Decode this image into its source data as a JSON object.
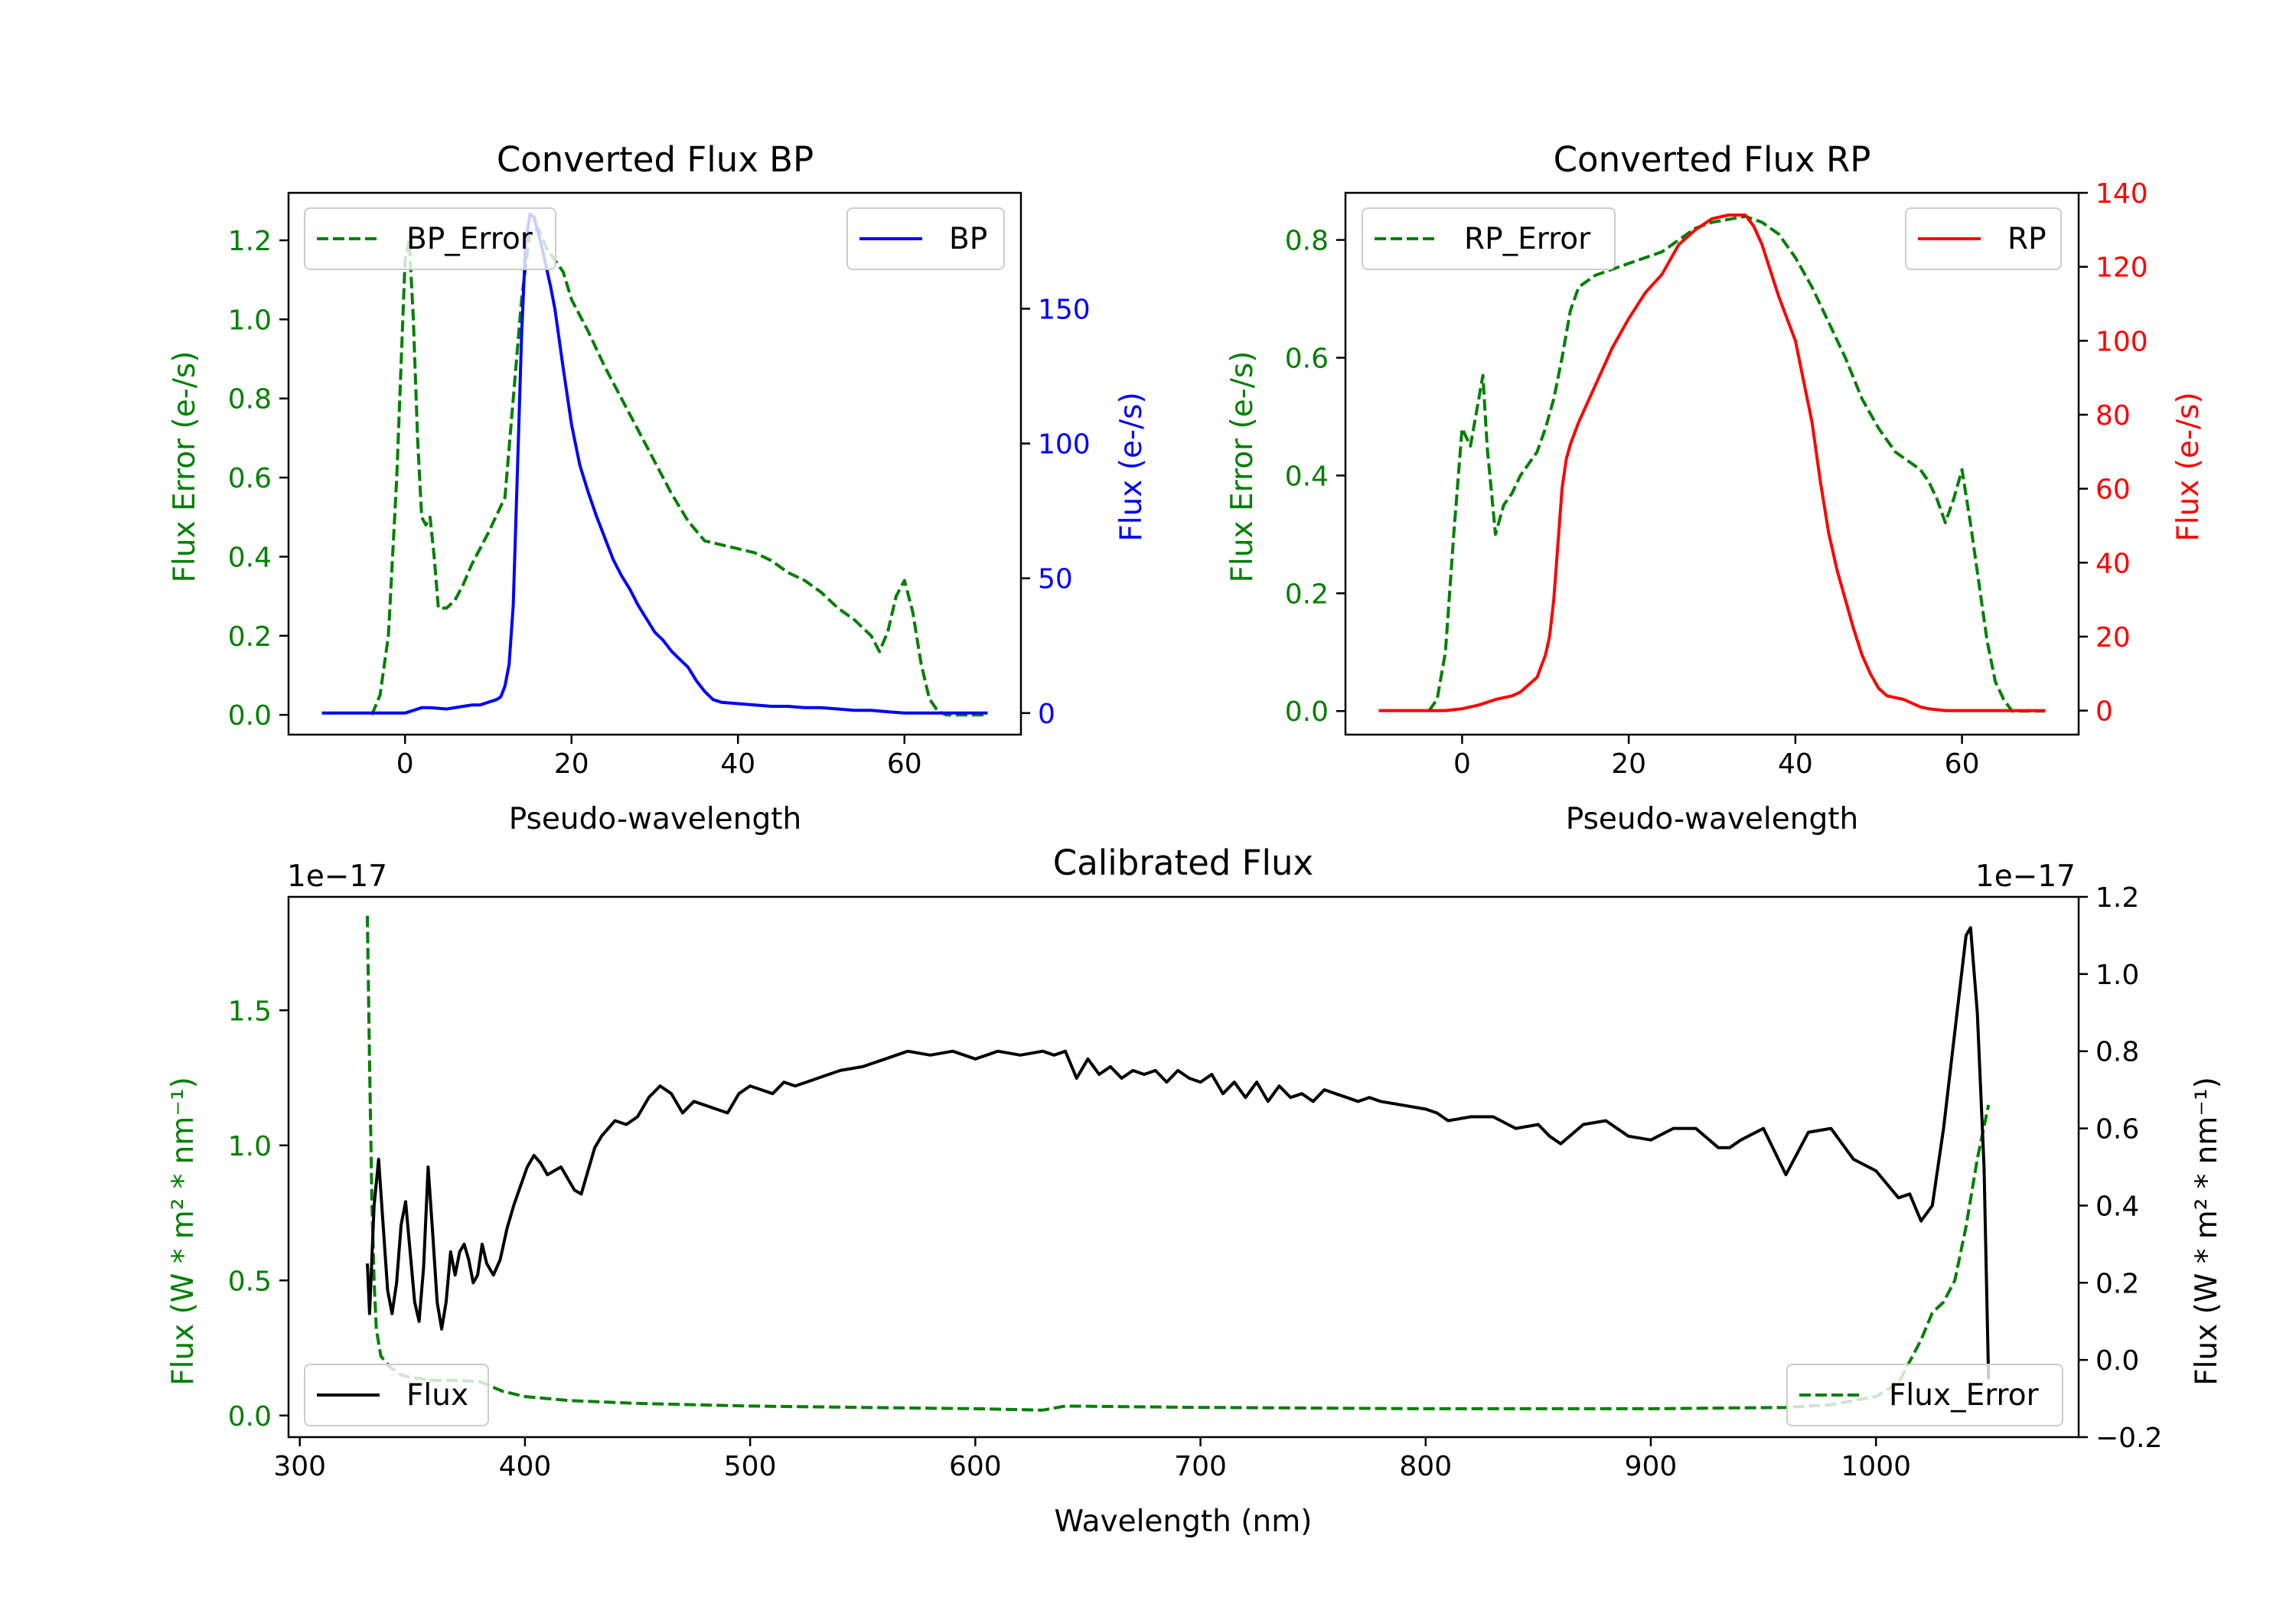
{
  "chart_data": [
    {
      "type": "line",
      "title": "Converted Flux BP",
      "xlabel": "Pseudo-wavelength",
      "ylabel_left": "Flux Error (e-/s)",
      "ylabel_right": "Flux (e-/s)",
      "xlim": [
        -14,
        74
      ],
      "ylim_left": [
        -0.05,
        1.32
      ],
      "ylim_right": [
        -8,
        193
      ],
      "xticks": [
        0,
        20,
        40,
        60
      ],
      "yticks_left": [
        0.0,
        0.2,
        0.4,
        0.6,
        0.8,
        1.0,
        1.2
      ],
      "yticks_right": [
        0,
        50,
        100,
        150
      ],
      "colors": {
        "left": "#008000",
        "right": "#0000ff"
      },
      "legend_left": {
        "label": "BP_Error",
        "position": "upper-left"
      },
      "legend_right": {
        "label": "BP",
        "position": "upper-right"
      },
      "series": [
        {
          "name": "BP_Error",
          "axis": "left",
          "color": "#008000",
          "style": "dashed",
          "x": [
            -4,
            -3,
            -2,
            -1,
            0,
            0.5,
            1,
            1.5,
            2,
            2.5,
            3,
            3.5,
            4,
            5,
            6,
            7,
            8,
            10,
            12,
            14,
            15,
            16,
            17,
            18,
            19,
            20,
            22,
            24,
            26,
            28,
            30,
            32,
            34,
            36,
            38,
            40,
            42,
            44,
            46,
            48,
            50,
            52,
            54,
            56,
            57,
            58,
            59,
            60,
            61,
            62,
            63,
            64,
            65,
            66,
            67,
            68,
            69,
            70
          ],
          "y": [
            0.0,
            0.05,
            0.2,
            0.6,
            1.15,
            1.2,
            1.0,
            0.7,
            0.5,
            0.48,
            0.5,
            0.4,
            0.27,
            0.27,
            0.29,
            0.33,
            0.38,
            0.46,
            0.55,
            1.05,
            1.22,
            1.23,
            1.18,
            1.15,
            1.12,
            1.05,
            0.97,
            0.88,
            0.8,
            0.72,
            0.64,
            0.56,
            0.49,
            0.44,
            0.43,
            0.42,
            0.41,
            0.39,
            0.36,
            0.34,
            0.31,
            0.27,
            0.24,
            0.2,
            0.16,
            0.21,
            0.3,
            0.34,
            0.26,
            0.13,
            0.04,
            0.01,
            0.0,
            0.0,
            0.0,
            0.0,
            0.0,
            0.0
          ]
        },
        {
          "name": "BP",
          "axis": "right",
          "color": "#0000ff",
          "style": "solid",
          "x": [
            -10,
            -6,
            -3,
            -1,
            0,
            2,
            3,
            5,
            7,
            8,
            9,
            10,
            11,
            11.5,
            12,
            12.5,
            13,
            13.5,
            14,
            14.5,
            15,
            15.5,
            16,
            16.5,
            17,
            17.5,
            18,
            19,
            20,
            21,
            22,
            23,
            24,
            25,
            26,
            27,
            28,
            29,
            30,
            31,
            32,
            33,
            34,
            35,
            36,
            37,
            38,
            40,
            42,
            44,
            46,
            48,
            50,
            52,
            54,
            56,
            58,
            60,
            62,
            64,
            66,
            68,
            70
          ],
          "y": [
            0,
            0,
            0,
            0,
            0,
            2,
            2,
            1.5,
            2.5,
            3,
            3,
            4,
            5,
            6,
            10,
            18,
            40,
            90,
            140,
            175,
            185,
            184,
            178,
            172,
            165,
            158,
            150,
            128,
            107,
            92,
            82,
            73,
            65,
            57,
            51,
            46,
            40,
            35,
            30,
            27,
            23,
            20,
            17,
            12,
            8,
            5,
            4,
            3.5,
            3,
            2.5,
            2.5,
            2,
            2,
            1.5,
            1,
            1,
            0.5,
            0,
            0,
            0,
            0,
            0,
            0
          ]
        }
      ]
    },
    {
      "type": "line",
      "title": "Converted Flux RP",
      "xlabel": "Pseudo-wavelength",
      "ylabel_left": "Flux Error (e-/s)",
      "ylabel_right": "Flux (e-/s)",
      "xlim": [
        -14,
        74
      ],
      "ylim_left": [
        -0.04,
        0.88
      ],
      "ylim_right": [
        -6.5,
        140
      ],
      "xticks": [
        0,
        20,
        40,
        60
      ],
      "yticks_left": [
        0.0,
        0.2,
        0.4,
        0.6,
        0.8
      ],
      "yticks_right": [
        0,
        20,
        40,
        60,
        80,
        100,
        120,
        140
      ],
      "colors": {
        "left": "#008000",
        "right": "#ff0000"
      },
      "legend_left": {
        "label": "RP_Error",
        "position": "upper-left"
      },
      "legend_right": {
        "label": "RP",
        "position": "upper-right"
      },
      "series": [
        {
          "name": "RP_Error",
          "axis": "left",
          "color": "#008000",
          "style": "dashed",
          "x": [
            -4,
            -3,
            -2,
            -1,
            0,
            1,
            2,
            2.5,
            3,
            4,
            5,
            6,
            7,
            8,
            9,
            10,
            11,
            12,
            13,
            14,
            16,
            18,
            20,
            22,
            24,
            26,
            28,
            30,
            32,
            34,
            36,
            38,
            40,
            42,
            44,
            46,
            48,
            50,
            52,
            54,
            55,
            56,
            57,
            58,
            59,
            60,
            61,
            62,
            63,
            64,
            65,
            66,
            68,
            70
          ],
          "y": [
            0.0,
            0.02,
            0.1,
            0.3,
            0.48,
            0.45,
            0.53,
            0.57,
            0.45,
            0.3,
            0.35,
            0.37,
            0.4,
            0.42,
            0.44,
            0.48,
            0.53,
            0.6,
            0.68,
            0.72,
            0.74,
            0.75,
            0.76,
            0.77,
            0.78,
            0.8,
            0.82,
            0.83,
            0.835,
            0.84,
            0.83,
            0.81,
            0.77,
            0.72,
            0.66,
            0.6,
            0.53,
            0.48,
            0.44,
            0.42,
            0.41,
            0.39,
            0.36,
            0.32,
            0.36,
            0.41,
            0.32,
            0.22,
            0.12,
            0.05,
            0.02,
            0.0,
            0.0,
            0.0
          ]
        },
        {
          "name": "RP",
          "axis": "right",
          "color": "#ff0000",
          "style": "solid",
          "x": [
            -10,
            -5,
            -2,
            0,
            2,
            4,
            6,
            7,
            8,
            9,
            10,
            10.5,
            11,
            11.5,
            12,
            12.5,
            13,
            14,
            16,
            18,
            20,
            22,
            24,
            26,
            28,
            30,
            32,
            34,
            35,
            36,
            38,
            40,
            42,
            43,
            44,
            45,
            46,
            47,
            48,
            49,
            50,
            51,
            52,
            53,
            54,
            55,
            56,
            58,
            60,
            62,
            64,
            66,
            68,
            70
          ],
          "y": [
            0,
            0,
            0,
            0.5,
            1.5,
            3,
            4,
            5,
            7,
            9,
            15,
            20,
            30,
            45,
            60,
            68,
            72,
            78,
            88,
            98,
            106,
            113,
            118,
            126,
            130,
            133,
            134,
            134,
            131,
            126,
            112,
            100,
            78,
            62,
            48,
            38,
            30,
            22,
            15,
            10,
            6,
            4,
            3.5,
            3,
            2,
            1,
            0.5,
            0,
            0,
            0,
            0,
            0,
            0,
            0
          ]
        }
      ]
    },
    {
      "type": "line",
      "title": "Calibrated Flux",
      "xlabel": "Wavelength (nm)",
      "ylabel_left": "Flux (W * m² * nm⁻¹)",
      "ylabel_right": "Flux (W * m² * nm⁻¹)",
      "offset_text_left": "1e−17",
      "offset_text_right": "1e−17",
      "xlim": [
        295,
        1090
      ],
      "ylim_left": [
        -0.08,
        1.92
      ],
      "ylim_right": [
        -0.2,
        1.2
      ],
      "xticks": [
        300,
        400,
        500,
        600,
        700,
        800,
        900,
        1000
      ],
      "yticks_left": [
        0.0,
        0.5,
        1.0,
        1.5
      ],
      "yticks_right": [
        -0.2,
        0.0,
        0.2,
        0.4,
        0.6,
        0.8,
        1.0,
        1.2
      ],
      "tick_labels_right": [
        "−0.2",
        "0.0",
        "0.2",
        "0.4",
        "0.6",
        "0.8",
        "1.0",
        "1.2"
      ],
      "colors": {
        "left": "#008000",
        "right": "#000000"
      },
      "legend_left": {
        "label": "Flux",
        "position": "lower-left"
      },
      "legend_right": {
        "label": "Flux_Error",
        "position": "lower-right"
      },
      "series": [
        {
          "name": "Flux_Error",
          "axis": "left",
          "color": "#008000",
          "style": "dashed",
          "x": [
            330,
            331,
            332,
            333,
            334,
            336,
            340,
            345,
            350,
            360,
            370,
            380,
            390,
            400,
            420,
            450,
            500,
            550,
            600,
            630,
            640,
            700,
            800,
            900,
            960,
            980,
            1000,
            1010,
            1015,
            1020,
            1025,
            1030,
            1035,
            1040,
            1045,
            1050
          ],
          "y": [
            1.85,
            1.3,
            0.8,
            0.5,
            0.32,
            0.22,
            0.18,
            0.15,
            0.14,
            0.13,
            0.13,
            0.125,
            0.09,
            0.07,
            0.055,
            0.045,
            0.035,
            0.03,
            0.025,
            0.02,
            0.035,
            0.03,
            0.025,
            0.025,
            0.03,
            0.04,
            0.07,
            0.12,
            0.2,
            0.28,
            0.38,
            0.42,
            0.5,
            0.7,
            0.95,
            1.15
          ]
        },
        {
          "name": "Flux",
          "axis": "right",
          "color": "#000000",
          "style": "solid",
          "x": [
            330,
            331,
            333,
            335,
            337,
            339,
            341,
            343,
            345,
            347,
            349,
            351,
            353,
            355,
            357,
            359,
            361,
            363,
            365,
            367,
            369,
            371,
            373,
            375,
            377,
            379,
            381,
            383,
            386,
            389,
            392,
            395,
            398,
            401,
            404,
            407,
            410,
            413,
            416,
            419,
            422,
            425,
            428,
            431,
            434,
            437,
            440,
            445,
            450,
            455,
            460,
            465,
            470,
            475,
            480,
            485,
            490,
            495,
            500,
            505,
            510,
            515,
            520,
            525,
            530,
            540,
            550,
            560,
            570,
            580,
            590,
            600,
            605,
            610,
            620,
            630,
            635,
            640,
            645,
            650,
            655,
            660,
            665,
            670,
            675,
            680,
            685,
            690,
            695,
            700,
            705,
            710,
            715,
            720,
            725,
            730,
            735,
            740,
            745,
            750,
            755,
            760,
            765,
            770,
            775,
            780,
            790,
            800,
            805,
            810,
            820,
            830,
            840,
            850,
            855,
            860,
            870,
            880,
            890,
            900,
            910,
            920,
            930,
            935,
            940,
            950,
            960,
            970,
            980,
            990,
            1000,
            1010,
            1015,
            1020,
            1025,
            1030,
            1035,
            1040,
            1042,
            1045,
            1048,
            1050
          ],
          "y": [
            0.25,
            0.12,
            0.4,
            0.52,
            0.35,
            0.18,
            0.12,
            0.2,
            0.35,
            0.41,
            0.28,
            0.15,
            0.1,
            0.24,
            0.5,
            0.33,
            0.15,
            0.08,
            0.15,
            0.28,
            0.22,
            0.28,
            0.3,
            0.26,
            0.2,
            0.22,
            0.3,
            0.25,
            0.22,
            0.26,
            0.34,
            0.4,
            0.45,
            0.5,
            0.53,
            0.51,
            0.48,
            0.49,
            0.5,
            0.47,
            0.44,
            0.43,
            0.49,
            0.55,
            0.58,
            0.6,
            0.62,
            0.61,
            0.63,
            0.68,
            0.71,
            0.69,
            0.64,
            0.67,
            0.66,
            0.65,
            0.64,
            0.69,
            0.71,
            0.7,
            0.69,
            0.72,
            0.71,
            0.72,
            0.73,
            0.75,
            0.76,
            0.78,
            0.8,
            0.79,
            0.8,
            0.78,
            0.79,
            0.8,
            0.79,
            0.8,
            0.79,
            0.8,
            0.73,
            0.78,
            0.74,
            0.76,
            0.73,
            0.75,
            0.74,
            0.75,
            0.72,
            0.75,
            0.73,
            0.72,
            0.74,
            0.69,
            0.72,
            0.68,
            0.72,
            0.67,
            0.71,
            0.68,
            0.69,
            0.67,
            0.7,
            0.69,
            0.68,
            0.67,
            0.68,
            0.67,
            0.66,
            0.65,
            0.64,
            0.62,
            0.63,
            0.63,
            0.6,
            0.61,
            0.58,
            0.56,
            0.61,
            0.62,
            0.58,
            0.57,
            0.6,
            0.6,
            0.55,
            0.55,
            0.57,
            0.6,
            0.48,
            0.59,
            0.6,
            0.52,
            0.49,
            0.42,
            0.43,
            0.36,
            0.4,
            0.6,
            0.85,
            1.1,
            1.12,
            0.9,
            0.5,
            -0.05
          ]
        }
      ]
    }
  ]
}
